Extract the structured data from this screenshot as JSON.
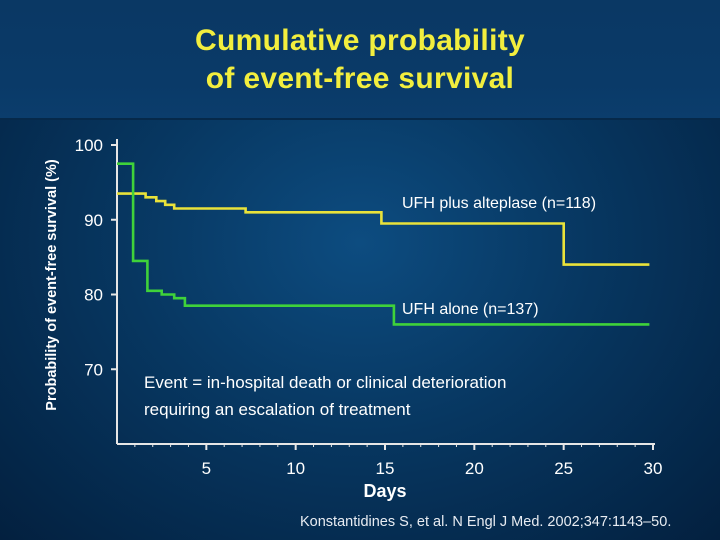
{
  "title_lines": [
    "Cumulative probability",
    "of event-free survival"
  ],
  "citation": "Konstantidines S, et al. N Engl J Med. 2002;347:1143–50.",
  "colors": {
    "title": "#f2ee3e",
    "series_ufh_alteplase": "#e9e23a",
    "series_ufh_alone": "#3fd23a",
    "axis": "#e6e6e6",
    "text": "#ffffff"
  },
  "chart_data": {
    "type": "line",
    "step": true,
    "xlabel": "Days",
    "ylabel": "Probability of event-free survival (%)",
    "xlim": [
      0,
      30
    ],
    "ylim": [
      60,
      100
    ],
    "x_ticks": [
      "5",
      "10",
      "15",
      "20",
      "25",
      "30"
    ],
    "y_ticks": [
      "70",
      "80",
      "90",
      "100"
    ],
    "grid": false,
    "annotation": [
      "Event = in-hospital death or clinical deterioration",
      "requiring an escalation of treatment"
    ],
    "series": [
      {
        "name": "UFH plus alteplase (n=118)",
        "x": [
          0,
          1.6,
          1.6,
          2.2,
          2.2,
          2.7,
          2.7,
          3.2,
          3.2,
          7.2,
          7.2,
          14.8,
          14.8,
          25,
          25,
          29.8
        ],
        "y": [
          93.5,
          93.5,
          93.0,
          93.0,
          92.5,
          92.5,
          92.0,
          92.0,
          91.5,
          91.5,
          91.0,
          91.0,
          89.5,
          89.5,
          84,
          84
        ]
      },
      {
        "name": "UFH alone (n=137)",
        "x": [
          0,
          0.9,
          0.9,
          1.7,
          1.7,
          2.5,
          2.5,
          3.2,
          3.2,
          3.8,
          3.8,
          15.5,
          15.5,
          29.8
        ],
        "y": [
          97.5,
          97.5,
          84.5,
          84.5,
          80.5,
          80.5,
          80.0,
          80.0,
          79.5,
          79.5,
          78.5,
          78.5,
          76,
          76
        ]
      }
    ]
  }
}
